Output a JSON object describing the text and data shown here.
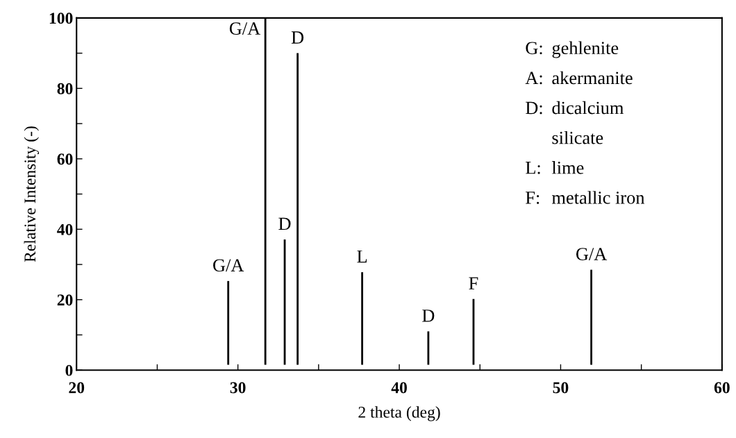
{
  "chart_data": {
    "type": "bar",
    "x": [
      29.4,
      31.7,
      32.9,
      33.7,
      37.7,
      41.8,
      44.6,
      51.9
    ],
    "base": [
      1.5,
      1.5,
      1.5,
      1.5,
      1.5,
      1.5,
      1.5,
      1.5
    ],
    "values": [
      23.8,
      98.5,
      35.6,
      88.5,
      26.3,
      9.5,
      18.7,
      27.0
    ],
    "color": "#000000",
    "xlabel": "2 theta (deg)",
    "ylabel": "Relative Intensity (-)",
    "xlim": [
      20,
      60
    ],
    "ylim": [
      0,
      100
    ],
    "xticks": [
      20,
      {
        "value": 25,
        "label": null
      },
      30,
      {
        "value": 35,
        "label": null
      },
      40,
      {
        "value": 45,
        "label": null
      },
      50,
      {
        "value": 55,
        "label": null
      },
      60
    ],
    "yticks": [
      0,
      {
        "value": 10,
        "label": null
      },
      20,
      {
        "value": 30,
        "label": null
      },
      40,
      {
        "value": 50,
        "label": null
      },
      60,
      {
        "value": 70,
        "label": null
      },
      80,
      {
        "value": 90,
        "label": null
      },
      100
    ],
    "grid": false,
    "annotations": [
      {
        "text": "G/A",
        "x": 29.4,
        "y": 25.3
      },
      {
        "text": "G/A",
        "x": 31.7,
        "y": 100
      },
      {
        "text": "D",
        "x": 32.9,
        "y": 37.1
      },
      {
        "text": "D",
        "x": 33.7,
        "y": 90
      },
      {
        "text": "L",
        "x": 37.7,
        "y": 27.8
      },
      {
        "text": "D",
        "x": 41.8,
        "y": 11
      },
      {
        "text": "F",
        "x": 44.6,
        "y": 20.2
      },
      {
        "text": "G/A",
        "x": 51.9,
        "y": 28.5
      },
      "G: gehlenite",
      "A: akermanite",
      "D: dicalcium\nsilicate",
      "L: lime",
      "F: metallic iron"
    ]
  }
}
